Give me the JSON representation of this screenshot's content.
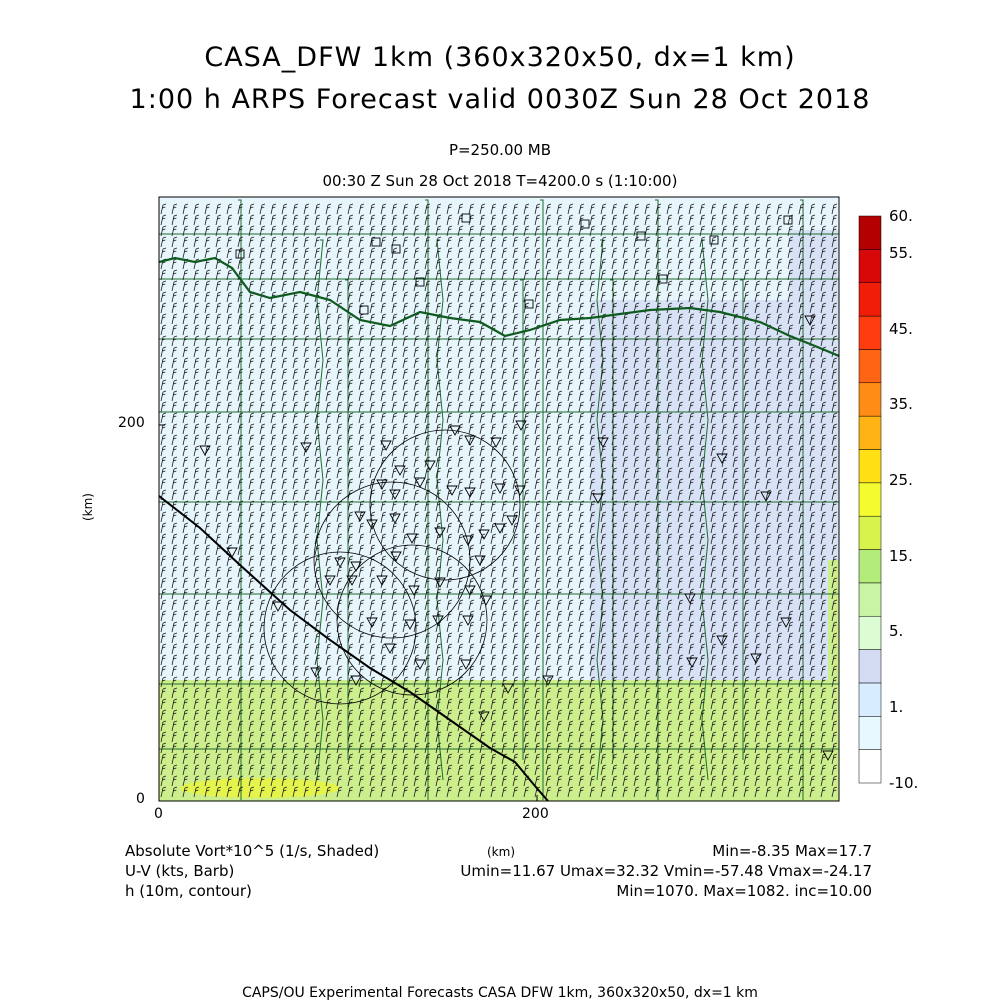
{
  "title": {
    "line1": "CASA_DFW 1km (360x320x50, dx=1 km)",
    "line2": "1:00 h ARPS Forecast valid 0030Z Sun 28 Oct 2018"
  },
  "subtitle": {
    "level": "P=250.00 MB",
    "time": "00:30 Z Sun 28 Oct 2018    T=4200.0 s (1:10:00)"
  },
  "axes": {
    "x_ticks": [
      "0",
      "200"
    ],
    "y_ticks": [
      "200",
      "0"
    ],
    "y_label": "(km)",
    "x_label": "(km)",
    "x_range_km": [
      0,
      360
    ],
    "y_range_km": [
      0,
      320
    ]
  },
  "colorbar": {
    "labels": [
      "60.",
      "55.",
      "45.",
      "35.",
      "25.",
      "15.",
      "5.",
      "1.",
      "-10."
    ],
    "colors": [
      "#ffffff",
      "#e8f8ff",
      "#d8ecff",
      "#d4dcf4",
      "#dcfcd4",
      "#c8f4a4",
      "#b4ec7c",
      "#d8f44c",
      "#f4fc30",
      "#ffe014",
      "#ffb414",
      "#ff8c14",
      "#ff6414",
      "#ff3c10",
      "#f01e08",
      "#d80808",
      "#b40000"
    ]
  },
  "info": {
    "field1": "Absolute Vort*10^5 (1/s, Shaded)",
    "field2": "U-V (kts, Barb)",
    "field3": "h (10m, contour)",
    "unit": "(km)",
    "minmax1": "Min=-8.35 Max=17.7",
    "minmax2": "Umin=11.67 Umax=32.32 Vmin=-57.48 Vmax=-24.17",
    "minmax3": "Min=1070. Max=1082. inc=10.00"
  },
  "footer": "CAPS/OU Experimental Forecasts  CASA DFW 1km, 360x320x50, dx=1 km",
  "map_colors": {
    "background": "#e6f6fc",
    "lavender": "#d8e2f6",
    "green_band": "#cdee8c",
    "yellow_patch": "#e4f44c",
    "county_lines": "#1e6b2e",
    "state_line": "#0f5a1e",
    "barbs": "#202020"
  }
}
